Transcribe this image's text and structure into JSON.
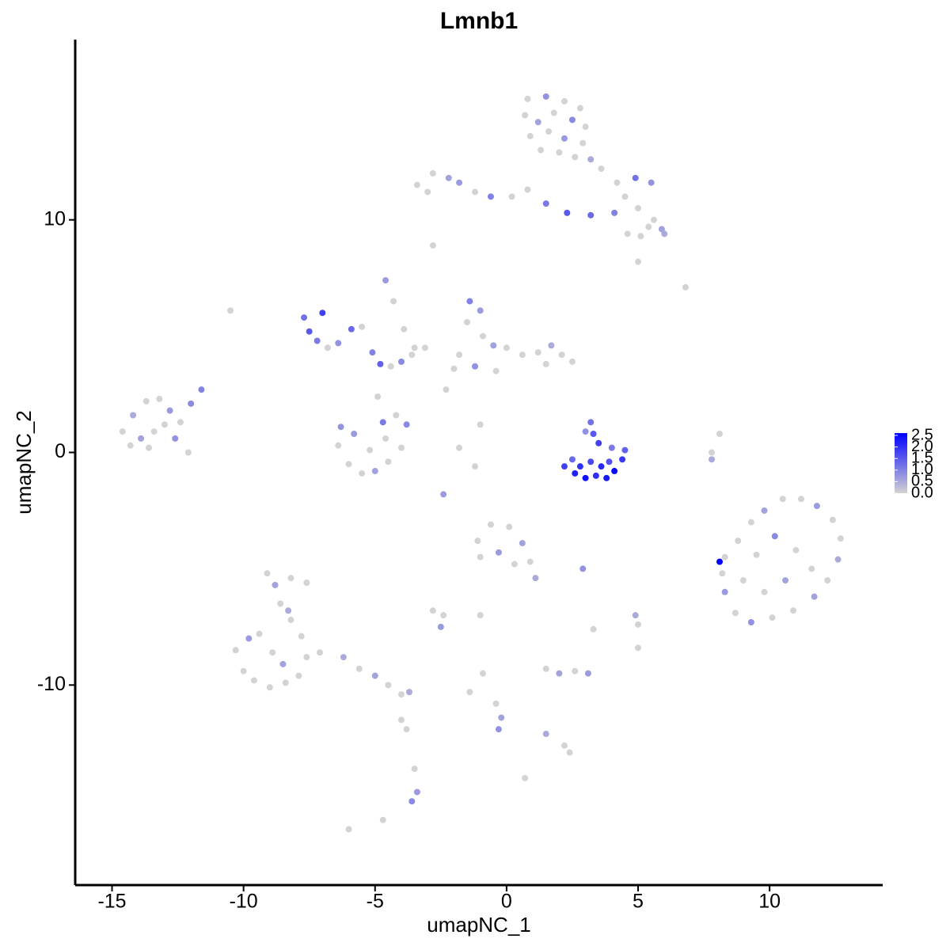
{
  "chart_data": {
    "type": "scatter",
    "title": "Lmnb1",
    "xlabel": "umapNC_1",
    "ylabel": "umapNC_2",
    "xlim": [
      -16.4,
      14.3
    ],
    "ylim": [
      -18.6,
      17.75
    ],
    "xticks": [
      -15,
      -10,
      -5,
      0,
      5,
      10
    ],
    "yticks": [
      -10,
      0,
      10
    ],
    "low_color": "#D3D3D3",
    "high_color": "#0000FF",
    "colorlim": [
      0,
      2.6
    ],
    "colorticks": [
      {
        "value": 0,
        "label": "0.0"
      },
      0.5,
      {
        "value": 1,
        "label": "1.0"
      },
      1.5,
      {
        "value": 2,
        "label": "2.0"
      },
      2.5
    ],
    "x": [
      0.8,
      1.5,
      2.2,
      2.8,
      0.7,
      1.2,
      1.8,
      2.5,
      3.0,
      0.9,
      1.6,
      2.2,
      2.9,
      1.3,
      2.0,
      2.6,
      3.2,
      3.6,
      4.2,
      4.9,
      5.5,
      4.5,
      5.0,
      4.1,
      5.6,
      5.9,
      4.6,
      5.1,
      5.4,
      6.0,
      3.2,
      5.0,
      -3.4,
      -2.8,
      -2.2,
      -3.0,
      -1.8,
      -1.2,
      -0.6,
      0.2,
      0.8,
      1.5,
      2.3,
      -2.8,
      -14.6,
      -14.2,
      -13.7,
      -13.2,
      -12.8,
      -12.4,
      -13.9,
      -13.4,
      -13.0,
      -12.6,
      -12.1,
      -13.6,
      -14.3,
      -12.0,
      -11.6,
      -10.5,
      -7.7,
      -7.5,
      -7.2,
      -6.8,
      -6.4,
      -5.9,
      -5.5,
      -5.1,
      -4.8,
      -4.4,
      -4.0,
      -3.6,
      -7.0,
      -4.6,
      -4.3,
      -3.9,
      -3.5,
      -3.1,
      -6.4,
      -6.0,
      -5.5,
      -5.0,
      -4.5,
      -4.0,
      -3.8,
      -4.2,
      -5.8,
      -5.2,
      -4.6,
      -6.3,
      -4.7,
      -4.9,
      -1.4,
      -1.0,
      -1.5,
      -0.9,
      -0.5,
      0.0,
      0.6,
      1.2,
      1.7,
      2.1,
      2.5,
      -1.8,
      -2.0,
      -1.2,
      -0.4,
      1.5,
      -2.3,
      -1.0,
      -1.8,
      -1.2,
      2.2,
      2.6,
      3.0,
      3.4,
      3.8,
      4.1,
      4.4,
      4.5,
      3.6,
      3.2,
      2.8,
      3.9,
      3.2,
      3.3,
      3.5,
      3.0,
      4.0,
      2.5,
      8.3,
      8.8,
      9.3,
      9.8,
      10.5,
      11.2,
      11.8,
      12.4,
      12.7,
      12.6,
      12.2,
      11.7,
      10.9,
      10.1,
      9.3,
      8.7,
      8.3,
      8.2,
      9.5,
      10.2,
      11.0,
      11.6,
      10.6,
      9.8,
      9.0,
      8.1,
      -10.3,
      -10.0,
      -9.6,
      -9.0,
      -8.4,
      -7.9,
      -7.6,
      -7.8,
      -8.2,
      -8.6,
      -8.8,
      -9.1,
      -8.2,
      -7.6,
      -8.3,
      -9.4,
      -9.8,
      -8.9,
      -8.5,
      -7.1,
      -6.2,
      -5.6,
      -5.0,
      -4.5,
      -4.0,
      -3.7,
      -1.1,
      -0.6,
      0.1,
      0.6,
      0.9,
      1.1,
      -0.3,
      -1.0,
      0.3,
      2.9,
      -2.8,
      -2.4,
      -2.5,
      -1.0,
      3.3,
      4.9,
      5.0,
      1.5,
      2.0,
      2.6,
      3.1,
      -0.9,
      -0.4,
      -0.2,
      -0.3,
      1.5,
      2.2,
      2.4,
      -3.5,
      -3.4,
      -3.6,
      -3.8,
      -4.0,
      -6.0,
      -4.7,
      0.7,
      -1.4,
      -2.4,
      6.8,
      7.8,
      8.1,
      7.8,
      5.0
    ],
    "y": [
      15.2,
      15.3,
      15.1,
      14.8,
      14.5,
      14.2,
      14.6,
      14.3,
      14.0,
      13.6,
      13.8,
      13.5,
      13.3,
      13.0,
      12.9,
      12.7,
      12.6,
      12.2,
      11.6,
      11.8,
      11.6,
      11.0,
      10.5,
      10.3,
      10.0,
      9.6,
      9.4,
      9.3,
      9.7,
      9.4,
      10.2,
      8.2,
      11.5,
      12.0,
      11.8,
      11.2,
      11.6,
      11.2,
      11.0,
      11.0,
      11.3,
      10.7,
      10.3,
      8.9,
      0.9,
      1.6,
      2.2,
      2.3,
      1.8,
      1.3,
      0.6,
      0.9,
      1.2,
      0.6,
      0.0,
      0.2,
      0.3,
      2.1,
      2.7,
      6.1,
      5.8,
      5.2,
      4.8,
      4.5,
      4.7,
      5.3,
      5.4,
      4.3,
      3.8,
      3.7,
      3.9,
      4.2,
      6.0,
      7.4,
      6.5,
      5.3,
      4.5,
      4.5,
      0.3,
      -0.5,
      -0.9,
      -0.8,
      -0.4,
      0.2,
      1.2,
      1.6,
      0.8,
      0.1,
      0.6,
      1.1,
      1.3,
      2.4,
      6.5,
      6.1,
      5.6,
      5.0,
      4.6,
      4.5,
      4.2,
      4.3,
      4.6,
      4.2,
      3.9,
      4.2,
      3.6,
      3.7,
      3.5,
      3.8,
      2.7,
      1.2,
      0.2,
      -0.6,
      -0.6,
      -0.9,
      -1.1,
      -1.0,
      -1.1,
      -0.8,
      -0.3,
      0.1,
      -0.6,
      -0.4,
      -0.6,
      -0.4,
      1.3,
      0.8,
      0.4,
      0.9,
      0.2,
      -0.3,
      -4.5,
      -3.8,
      -3.0,
      -2.5,
      -2.0,
      -2.0,
      -2.3,
      -2.9,
      -3.7,
      -4.6,
      -5.5,
      -6.2,
      -6.8,
      -7.1,
      -7.3,
      -6.9,
      -6.0,
      -5.2,
      -4.4,
      -3.6,
      -4.2,
      -5.0,
      -5.5,
      -6.0,
      -5.5,
      -4.7,
      -8.5,
      -9.4,
      -9.8,
      -10.1,
      -9.9,
      -9.6,
      -8.8,
      -7.9,
      -7.2,
      -6.5,
      -5.7,
      -5.2,
      -5.4,
      -5.6,
      -6.8,
      -7.8,
      -8.0,
      -8.6,
      -9.1,
      -8.6,
      -8.8,
      -9.3,
      -9.6,
      -10.0,
      -10.4,
      -10.3,
      -3.8,
      -3.1,
      -3.2,
      -3.9,
      -4.7,
      -5.4,
      -4.3,
      -4.5,
      -4.8,
      -5.0,
      -6.8,
      -7.0,
      -7.5,
      -7.0,
      -7.6,
      -7.0,
      -7.4,
      -9.3,
      -9.5,
      -9.4,
      -9.5,
      -9.5,
      -10.8,
      -11.4,
      -11.9,
      -12.1,
      -12.6,
      -12.9,
      -13.6,
      -14.6,
      -15.0,
      -11.9,
      -11.5,
      -16.2,
      -15.8,
      -14.0,
      -10.3,
      -1.8,
      7.1,
      0.0,
      0.8,
      -0.3,
      -8.4
    ],
    "values": [
      0,
      0.8,
      0,
      0,
      0,
      0.6,
      0,
      0.9,
      0,
      0,
      0,
      0.7,
      0,
      0,
      0,
      0,
      0.5,
      0,
      0,
      1.2,
      0.8,
      0,
      0,
      1.0,
      0,
      0.6,
      0,
      0,
      0,
      0.5,
      1.3,
      0,
      0,
      0,
      0.6,
      0,
      0.7,
      0,
      1.0,
      0,
      0,
      1.1,
      1.5,
      0,
      0,
      0.5,
      0,
      0,
      0.7,
      0,
      0.6,
      0,
      0,
      0.8,
      0,
      0,
      0,
      0.9,
      1.0,
      0,
      1.2,
      1.5,
      1.1,
      0,
      0.8,
      1.3,
      0,
      1.0,
      1.4,
      0,
      0.9,
      0,
      1.8,
      0.7,
      0,
      0,
      0,
      0,
      0,
      0,
      0,
      0.6,
      0,
      0,
      0.9,
      0,
      0.7,
      0,
      0,
      0.8,
      1.1,
      0,
      1.0,
      0.7,
      0,
      0,
      0.6,
      0,
      0,
      0,
      0.5,
      0,
      0,
      0,
      0,
      0.8,
      0,
      0,
      0,
      0,
      0,
      0,
      1.8,
      2.2,
      2.4,
      2.0,
      2.3,
      2.5,
      1.9,
      1.4,
      2.1,
      1.7,
      2.0,
      1.6,
      1.2,
      1.5,
      1.8,
      0.8,
      1.1,
      1.3,
      0,
      0,
      0,
      0.6,
      0,
      0,
      0.7,
      0,
      0,
      0.5,
      0,
      0.6,
      0,
      0,
      0.8,
      0,
      0.7,
      0,
      0,
      0.9,
      0,
      0,
      0.6,
      0,
      0,
      2.6,
      0,
      0,
      0,
      0,
      0,
      0,
      0,
      0,
      0,
      0,
      0.6,
      0,
      0,
      0,
      0.5,
      0,
      0.7,
      0,
      0.6,
      0,
      0.5,
      0,
      0.6,
      0,
      0,
      0.5,
      0,
      0,
      0,
      0.6,
      0,
      0.5,
      0.7,
      0,
      0,
      0.8,
      0,
      0,
      0.7,
      0,
      0,
      0.5,
      0,
      0,
      0.6,
      0,
      0.7,
      0,
      0,
      0.6,
      0.8,
      0.5,
      0,
      0,
      0,
      0.7,
      0.9,
      0,
      0,
      0,
      0,
      0,
      0,
      0.7,
      0,
      0,
      0,
      0.5,
      0
    ]
  }
}
